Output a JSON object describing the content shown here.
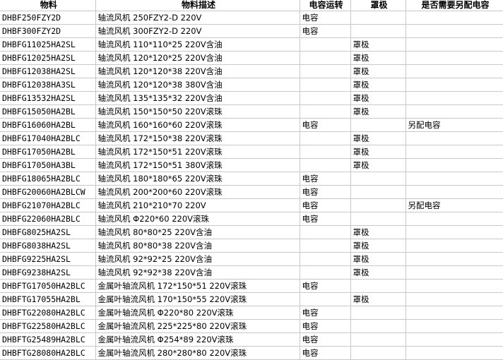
{
  "headers": [
    "物料",
    "物料描述",
    "电容运转",
    "罩极",
    "是否需要另配电容"
  ],
  "rows": [
    [
      "DHBF250FZY2D",
      "轴流风机 250FZY2-D 220V",
      "电容",
      "",
      ""
    ],
    [
      "DHBF300FZY2D",
      "轴流风机 300FZY2-D 220V",
      "电容",
      "",
      ""
    ],
    [
      "DHBFG11025HA2SL",
      "轴流风机 110*110*25 220V含油",
      "",
      "罩极",
      ""
    ],
    [
      "DHBFG12025HA2SL",
      "轴流风机 120*120*25 220V含油",
      "",
      "罩极",
      ""
    ],
    [
      "DHBFG12038HA2SL",
      "轴流风机 120*120*38 220V含油",
      "",
      "罩极",
      ""
    ],
    [
      "DHBFG12038HA3SL",
      "轴流风机 120*120*38 380V含油",
      "",
      "罩极",
      ""
    ],
    [
      "DHBFG13532HA2SL",
      "轴流风机 135*135*32 220V含油",
      "",
      "罩极",
      ""
    ],
    [
      "DHBFG15050HA2BL",
      "轴流风机 150*150*50 220V滚珠",
      "",
      "罩极",
      ""
    ],
    [
      "DHBFG16060HA2BL",
      "轴流风机 160*160*60 220V滚珠",
      "电容",
      "",
      "另配电容"
    ],
    [
      "DHBFG17040HA2BLC",
      "轴流风机 172*150*38 220V滚珠",
      "",
      "罩极",
      ""
    ],
    [
      "DHBFG17050HA2BL",
      "轴流风机 172*150*51 220V滚珠",
      "",
      "罩极",
      ""
    ],
    [
      "DHBFG17050HA3BL",
      "轴流风机 172*150*51 380V滚珠",
      "",
      "罩极",
      ""
    ],
    [
      "DHBFG18065HA2BLC",
      "轴流风机 180*180*65 220V滚珠",
      "电容",
      "",
      ""
    ],
    [
      "DHBFG20060HA2BLCW",
      "轴流风机 200*200*60 220V滚珠",
      "电容",
      "",
      ""
    ],
    [
      "DHBFG21070HA2BLC",
      "轴流风机 210*210*70 220V",
      "电容",
      "",
      "另配电容"
    ],
    [
      "DHBFG22060HA2BLC",
      "轴流风机 Φ220*60 220V滚珠",
      "电容",
      "",
      ""
    ],
    [
      "DHBFG8025HA2SL",
      "轴流风机 80*80*25 220V含油",
      "",
      "罩极",
      ""
    ],
    [
      "DHBFG8038HA2SL",
      "轴流风机 80*80*38 220V含油",
      "",
      "罩极",
      ""
    ],
    [
      "DHBFG9225HA2SL",
      "轴流风机 92*92*25 220V含油",
      "",
      "罩极",
      ""
    ],
    [
      "DHBFG9238HA2SL",
      "轴流风机 92*92*38 220V含油",
      "",
      "罩极",
      ""
    ],
    [
      "DHBFTG17050HA2BLC",
      "金属叶轴流风机 172*150*51 220V滚珠",
      "电容",
      "",
      ""
    ],
    [
      "DHBFTG17055HA2BL",
      "金属叶轴流风机 170*150*55 220V滚珠",
      "",
      "罩极",
      ""
    ],
    [
      "DHBFTG22080HA2BLC",
      "金属叶轴流风机 Φ220*80 220V滚珠",
      "电容",
      "",
      ""
    ],
    [
      "DHBFTG22580HA2BLC",
      "金属叶轴流风机 225*225*80 220V滚珠",
      "电容",
      "",
      ""
    ],
    [
      "DHBFTG25489HA2BLC",
      "金属叶轴流风机 Φ254*89 220V滚珠",
      "电容",
      "",
      ""
    ],
    [
      "DHBFTG28080HA2BLC",
      "金属叶轴流风机 280*280*80 220V滚珠",
      "电容",
      "",
      ""
    ]
  ]
}
